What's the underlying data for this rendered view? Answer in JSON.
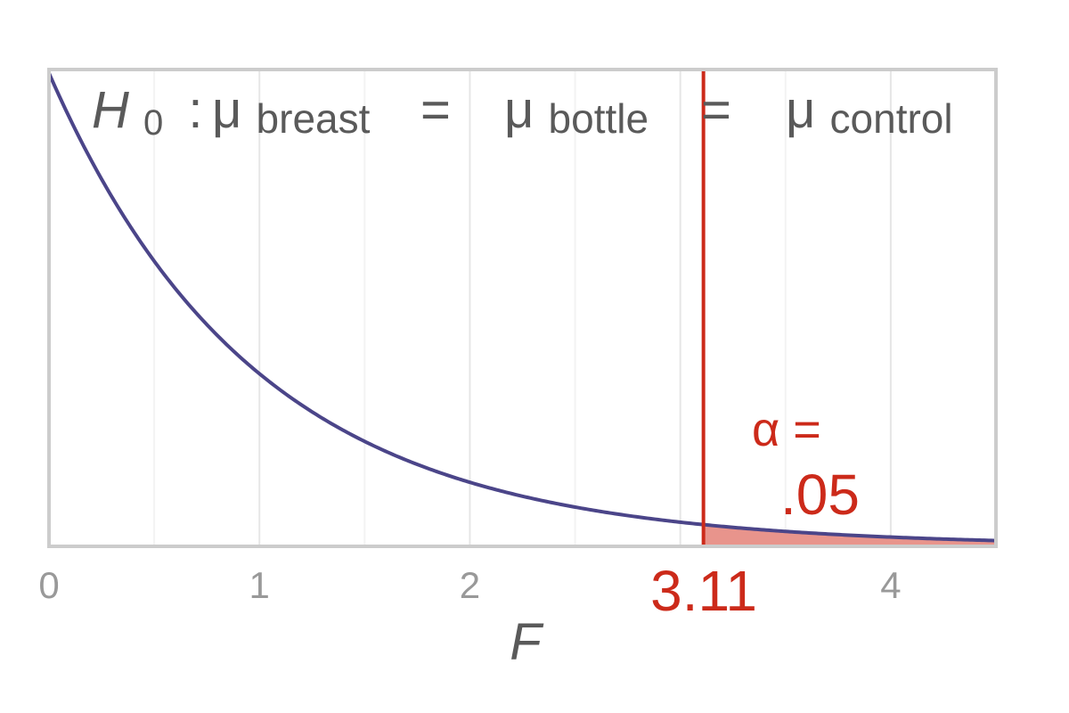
{
  "chart_data": {
    "type": "area",
    "distribution": "F",
    "df": [
      2,
      116
    ],
    "xlabel": "F",
    "ylabel": "",
    "xlim": [
      0,
      4.5
    ],
    "x_ticks": [
      0,
      1,
      2,
      3,
      4
    ],
    "x_tick_labels": [
      "0",
      "1",
      "2",
      "",
      "4"
    ],
    "grid": "vertical",
    "critical_value": 3.11,
    "critical_label": "3.11",
    "alpha_symbol": "α =",
    "alpha_value": ".05",
    "hypothesis": {
      "h": "H",
      "h_sub": "0",
      "colon": ":",
      "mu": "μ",
      "eq": "=",
      "groups": [
        "breast",
        "bottle",
        "control"
      ]
    }
  },
  "colors": {
    "curve": "#4b4589",
    "critical_line": "#cc2a1a",
    "tail_fill": "#e8948c",
    "frame": "#cccccc",
    "grid": "#eeeeee",
    "tick_text": "#999999",
    "title_text": "#5a5a5a"
  }
}
